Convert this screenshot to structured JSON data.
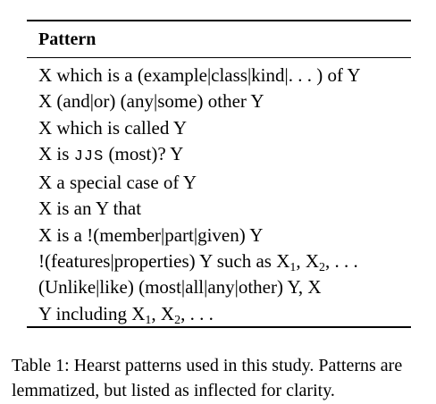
{
  "table": {
    "header": "Pattern",
    "rows": [
      {
        "segments": [
          {
            "t": "X which is a (example|class|kind|. . . ) of Y"
          }
        ]
      },
      {
        "segments": [
          {
            "t": "X (and|or) (any|some) other Y"
          }
        ]
      },
      {
        "segments": [
          {
            "t": "X which is called Y"
          }
        ]
      },
      {
        "segments": [
          {
            "t": "X is "
          },
          {
            "t": "JJS",
            "style": "mono"
          },
          {
            "t": " (most)? Y"
          }
        ]
      },
      {
        "segments": [
          {
            "t": "X a special case of Y"
          }
        ]
      },
      {
        "segments": [
          {
            "t": "X is an Y that"
          }
        ]
      },
      {
        "segments": [
          {
            "t": "X is a !(member|part|given) Y"
          }
        ]
      },
      {
        "segments": [
          {
            "t": "!(features|properties) Y such as X"
          },
          {
            "t": "1",
            "style": "sub"
          },
          {
            "t": ", X"
          },
          {
            "t": "2",
            "style": "sub"
          },
          {
            "t": ", . . ."
          }
        ]
      },
      {
        "segments": [
          {
            "t": "(Unlike|like) (most|all|any|other) Y, X"
          }
        ]
      },
      {
        "segments": [
          {
            "t": "Y including X"
          },
          {
            "t": "1",
            "style": "sub"
          },
          {
            "t": ", X"
          },
          {
            "t": "2",
            "style": "sub"
          },
          {
            "t": ", . . ."
          }
        ]
      }
    ]
  },
  "caption": "Table 1: Hearst patterns used in this study. Patterns are lemmatized, but listed as inflected for clarity."
}
